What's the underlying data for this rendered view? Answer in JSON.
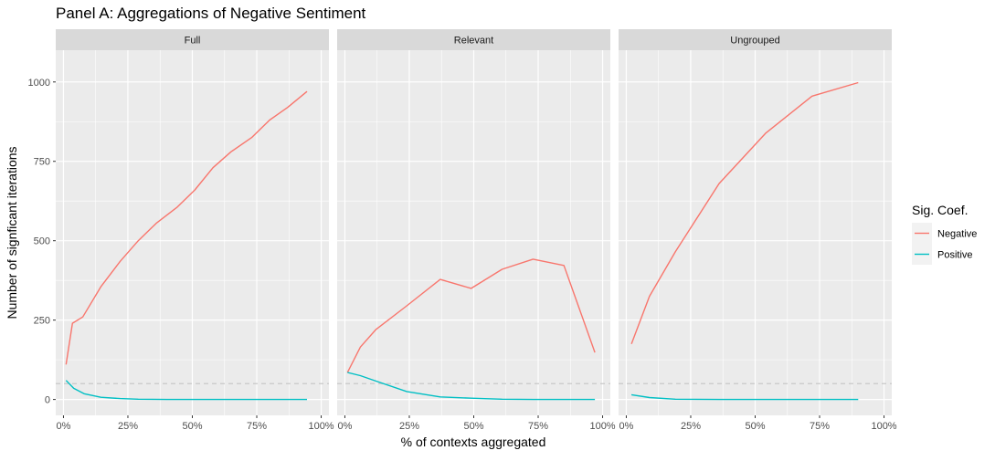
{
  "chart_data": {
    "type": "line",
    "title": "Panel A: Aggregations of Negative Sentiment",
    "xlabel": "% of contexts aggregated",
    "ylabel": "Number of signficant iterations",
    "x_ticks": [
      "0%",
      "25%",
      "50%",
      "75%",
      "100%"
    ],
    "y_ticks": [
      "0",
      "250",
      "500",
      "750",
      "1000"
    ],
    "xlim": [
      -0.03,
      1.03
    ],
    "ylim": [
      -50,
      1100
    ],
    "reference_line": {
      "y": 50,
      "style": "dashed",
      "color": "#c8c8c8"
    },
    "grid": true,
    "legend": {
      "title": "Sig. Coef.",
      "position": "right",
      "entries": [
        {
          "name": "Negative",
          "color": "#F8766D"
        },
        {
          "name": "Positive",
          "color": "#00BFC4"
        }
      ]
    },
    "panels": [
      {
        "name": "Full",
        "series": [
          {
            "name": "Negative",
            "points": [
              [
                0.01,
                110
              ],
              [
                0.035,
                240
              ],
              [
                0.075,
                260
              ],
              [
                0.145,
                355
              ],
              [
                0.22,
                435
              ],
              [
                0.29,
                500
              ],
              [
                0.36,
                555
              ],
              [
                0.44,
                605
              ],
              [
                0.51,
                660
              ],
              [
                0.58,
                730
              ],
              [
                0.65,
                780
              ],
              [
                0.73,
                825
              ],
              [
                0.8,
                880
              ],
              [
                0.87,
                920
              ],
              [
                0.945,
                970
              ]
            ]
          },
          {
            "name": "Positive",
            "points": [
              [
                0.01,
                60
              ],
              [
                0.04,
                35
              ],
              [
                0.08,
                18
              ],
              [
                0.145,
                7
              ],
              [
                0.22,
                3
              ],
              [
                0.29,
                1
              ],
              [
                0.4,
                0
              ],
              [
                0.5,
                0
              ],
              [
                0.6,
                0
              ],
              [
                0.7,
                0
              ],
              [
                0.8,
                0
              ],
              [
                0.945,
                0
              ]
            ]
          }
        ]
      },
      {
        "name": "Relevant",
        "series": [
          {
            "name": "Negative",
            "points": [
              [
                0.01,
                85
              ],
              [
                0.06,
                165
              ],
              [
                0.12,
                220
              ],
              [
                0.24,
                295
              ],
              [
                0.37,
                378
              ],
              [
                0.49,
                350
              ],
              [
                0.61,
                410
              ],
              [
                0.73,
                442
              ],
              [
                0.85,
                422
              ],
              [
                0.97,
                148
              ]
            ]
          },
          {
            "name": "Positive",
            "points": [
              [
                0.01,
                85
              ],
              [
                0.06,
                75
              ],
              [
                0.12,
                58
              ],
              [
                0.24,
                25
              ],
              [
                0.37,
                8
              ],
              [
                0.49,
                4
              ],
              [
                0.61,
                1
              ],
              [
                0.73,
                0
              ],
              [
                0.85,
                0
              ],
              [
                0.97,
                0
              ]
            ]
          }
        ]
      },
      {
        "name": "Ungrouped",
        "series": [
          {
            "name": "Negative",
            "points": [
              [
                0.02,
                175
              ],
              [
                0.09,
                325
              ],
              [
                0.19,
                465
              ],
              [
                0.36,
                680
              ],
              [
                0.54,
                838
              ],
              [
                0.72,
                955
              ],
              [
                0.9,
                998
              ]
            ]
          },
          {
            "name": "Positive",
            "points": [
              [
                0.02,
                15
              ],
              [
                0.09,
                6
              ],
              [
                0.19,
                1
              ],
              [
                0.36,
                0
              ],
              [
                0.54,
                0
              ],
              [
                0.72,
                0
              ],
              [
                0.9,
                0
              ]
            ]
          }
        ]
      }
    ]
  }
}
